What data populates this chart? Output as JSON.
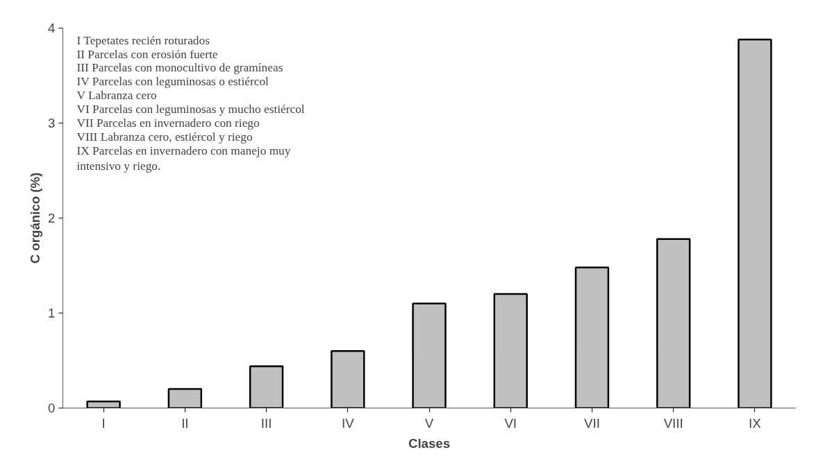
{
  "chart_data": {
    "type": "bar",
    "xlabel": "Clases",
    "ylabel": "C orgánico (%)",
    "categories": [
      "I",
      "II",
      "III",
      "IV",
      "V",
      "VI",
      "VII",
      "VIII",
      "IX"
    ],
    "values": [
      0.07,
      0.2,
      0.44,
      0.6,
      1.1,
      1.2,
      1.48,
      1.78,
      3.88
    ],
    "color": "#c0c0c0",
    "ylim": [
      0,
      4
    ],
    "yticks": [
      0,
      1,
      2,
      3,
      4
    ],
    "grid": false,
    "annotations": [
      "I Tepetates recién roturados",
      "II Parcelas con erosión fuerte",
      "III Parcelas con monocultivo de gramíneas",
      "IV Parcelas con leguminosas o estiércol",
      "V Labranza cero",
      "VI Parcelas con leguminosas y mucho estiércol",
      "VII Parcelas en invernadero con riego",
      "VIII Labranza cero, estiércol y riego",
      "IX Parcelas en invernadero con manejo muy\nintensivo y riego."
    ]
  }
}
